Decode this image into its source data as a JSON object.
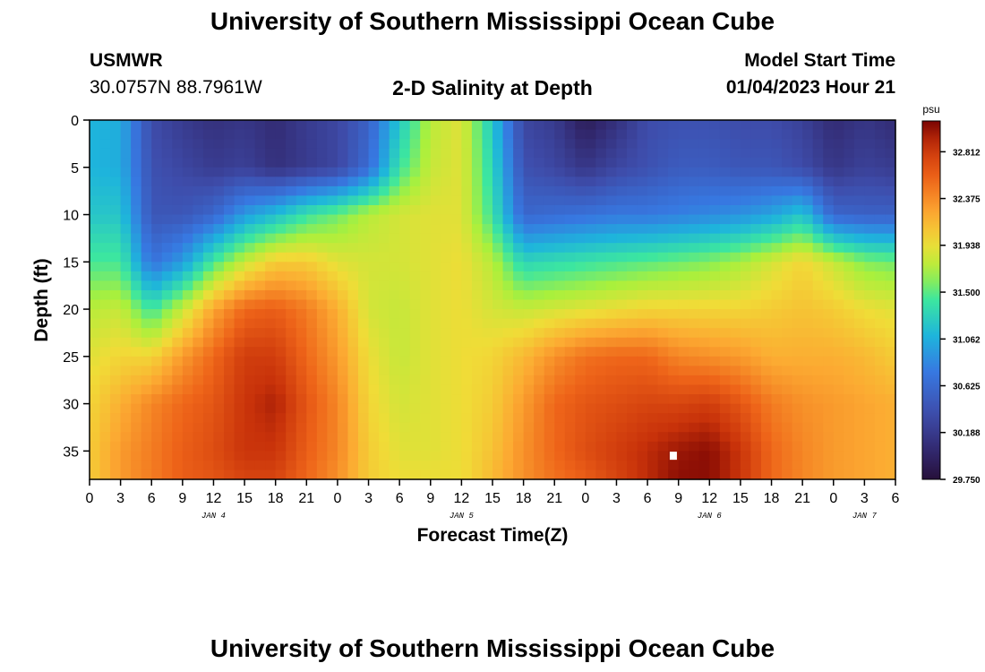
{
  "page": {
    "title_top": "University of Southern Mississippi Ocean Cube",
    "title_bottom": "University of Southern Mississippi Ocean Cube"
  },
  "header": {
    "station": "USMWR",
    "coords": "30.0757N  88.7961W",
    "plot_title": "2-D Salinity at Depth",
    "model_label": "Model Start Time",
    "model_time": "01/04/2023 Hour 21"
  },
  "chart_data": {
    "type": "heatmap",
    "title": "2-D Salinity at Depth",
    "xlabel": "Forecast Time(Z)",
    "ylabel": "Depth (ft)",
    "colorbar_label": "psu",
    "xlim": [
      0,
      78
    ],
    "ylim": [
      38,
      0
    ],
    "x_ticks": [
      0,
      3,
      6,
      9,
      12,
      15,
      18,
      21,
      24,
      27,
      30,
      33,
      36,
      39,
      42,
      45,
      48,
      51,
      54,
      57,
      60,
      63,
      66,
      69,
      72,
      75,
      78
    ],
    "x_tick_labels": [
      "0",
      "3",
      "6",
      "9",
      "12",
      "15",
      "18",
      "21",
      "0",
      "3",
      "6",
      "9",
      "12",
      "15",
      "18",
      "21",
      "0",
      "3",
      "6",
      "9",
      "12",
      "15",
      "18",
      "21",
      "0",
      "3",
      "6"
    ],
    "date_labels": [
      {
        "hour": 12,
        "text": "JAN 4"
      },
      {
        "hour": 36,
        "text": "JAN 5"
      },
      {
        "hour": 60,
        "text": "JAN 6"
      },
      {
        "hour": 75,
        "text": "JAN 7"
      }
    ],
    "y_ticks": [
      0,
      5,
      10,
      15,
      20,
      25,
      30,
      35
    ],
    "y_tick_labels": [
      "0",
      "5",
      "10",
      "15",
      "20",
      "25",
      "30",
      "35"
    ],
    "colorbar_range": [
      29.75,
      33.1
    ],
    "colorbar_ticks": [
      "32.812",
      "32.375",
      "31.938",
      "31.500",
      "31.062",
      "30.625",
      "30.188",
      "29.750"
    ],
    "colorbar_tick_values": [
      32.812,
      32.375,
      31.938,
      31.5,
      31.062,
      30.625,
      30.188,
      29.75
    ],
    "depth_levels": [
      0,
      5,
      10,
      15,
      20,
      25,
      30,
      35,
      38
    ],
    "time_hours": [
      0,
      3,
      6,
      9,
      12,
      15,
      18,
      21,
      24,
      27,
      30,
      33,
      36,
      39,
      42,
      45,
      48,
      51,
      54,
      57,
      60,
      63,
      66,
      69,
      72,
      75,
      78
    ],
    "salinity": [
      [
        31.1,
        31.05,
        30.35,
        30.2,
        30.1,
        30.15,
        30.05,
        30.2,
        30.3,
        30.55,
        31.2,
        31.75,
        31.9,
        31.2,
        30.3,
        30.2,
        29.9,
        30.1,
        30.35,
        30.4,
        30.4,
        30.35,
        30.35,
        30.25,
        30.05,
        30.15,
        30.05
      ],
      [
        31.1,
        31.05,
        30.4,
        30.3,
        30.2,
        30.25,
        30.1,
        30.2,
        30.3,
        30.65,
        31.4,
        31.8,
        31.9,
        31.3,
        30.4,
        30.3,
        30.15,
        30.3,
        30.4,
        30.5,
        30.5,
        30.45,
        30.45,
        30.35,
        30.15,
        30.25,
        30.2
      ],
      [
        31.2,
        31.2,
        30.45,
        30.45,
        30.6,
        30.95,
        31.15,
        31.4,
        31.55,
        31.75,
        31.85,
        31.9,
        31.9,
        31.4,
        30.6,
        30.65,
        30.7,
        30.75,
        30.75,
        30.8,
        30.85,
        30.9,
        31.0,
        31.2,
        30.6,
        30.55,
        30.55
      ],
      [
        31.45,
        31.45,
        30.7,
        30.95,
        31.45,
        31.8,
        32.05,
        32.05,
        31.9,
        31.85,
        31.85,
        31.9,
        31.95,
        31.75,
        31.3,
        31.35,
        31.4,
        31.45,
        31.5,
        31.55,
        31.6,
        31.7,
        31.85,
        32.0,
        31.8,
        31.6,
        31.55
      ],
      [
        31.75,
        31.8,
        31.4,
        31.8,
        32.25,
        32.55,
        32.6,
        32.45,
        32.2,
        31.85,
        31.8,
        31.9,
        31.95,
        31.85,
        31.8,
        31.85,
        31.9,
        31.95,
        32.0,
        32.0,
        32.0,
        32.0,
        32.05,
        32.1,
        32.05,
        31.95,
        31.9
      ],
      [
        31.9,
        32.0,
        32.0,
        32.3,
        32.55,
        32.8,
        32.8,
        32.55,
        32.3,
        31.95,
        31.8,
        31.9,
        31.95,
        32.0,
        32.15,
        32.35,
        32.5,
        32.55,
        32.55,
        32.4,
        32.35,
        32.3,
        32.2,
        32.2,
        32.2,
        32.15,
        32.05
      ],
      [
        32.0,
        32.2,
        32.4,
        32.55,
        32.65,
        32.85,
        32.95,
        32.65,
        32.4,
        32.0,
        31.85,
        31.9,
        31.95,
        32.05,
        32.3,
        32.55,
        32.65,
        32.7,
        32.75,
        32.75,
        32.8,
        32.65,
        32.45,
        32.35,
        32.3,
        32.25,
        32.2
      ],
      [
        32.05,
        32.3,
        32.45,
        32.6,
        32.7,
        32.85,
        32.85,
        32.6,
        32.4,
        32.05,
        31.9,
        31.9,
        31.95,
        32.1,
        32.35,
        32.55,
        32.7,
        32.8,
        32.9,
        33.0,
        33.05,
        32.85,
        32.55,
        32.4,
        32.3,
        32.25,
        32.2
      ],
      [
        32.05,
        32.3,
        32.45,
        32.6,
        32.65,
        32.75,
        32.75,
        32.55,
        32.35,
        32.05,
        31.95,
        31.95,
        31.95,
        32.15,
        32.35,
        32.5,
        32.6,
        32.75,
        32.9,
        33.05,
        33.05,
        32.85,
        32.55,
        32.4,
        32.3,
        32.25,
        32.2
      ]
    ],
    "marker": {
      "hour": 56.5,
      "depth": 35.5,
      "color": "#ffffff"
    }
  }
}
